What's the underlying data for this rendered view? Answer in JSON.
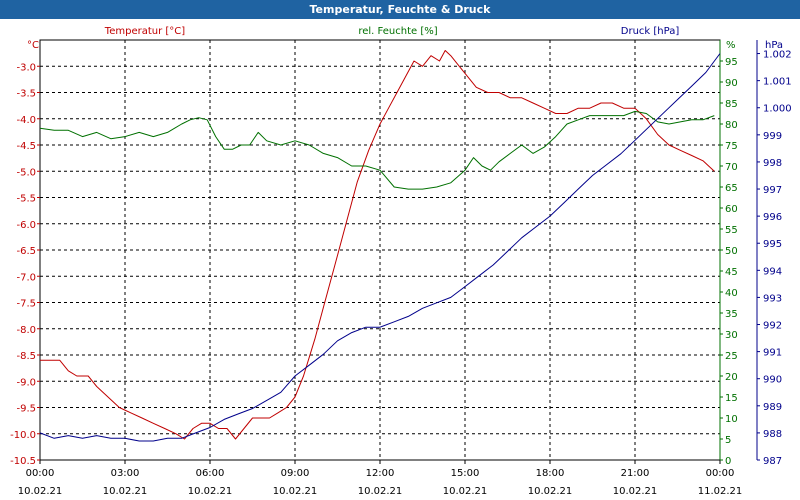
{
  "title": "Temperatur, Feuchte & Druck",
  "chart_data": {
    "type": "line",
    "title": "Temperatur, Feuchte & Druck",
    "colors": {
      "temperature": "#c00000",
      "humidity": "#007000",
      "pressure": "#00008b",
      "title_bar": "#1f63a2"
    },
    "x_ticks": [
      {
        "hours": 0,
        "time": "00:00",
        "date": "10.02.21"
      },
      {
        "hours": 3,
        "time": "03:00",
        "date": "10.02.21"
      },
      {
        "hours": 6,
        "time": "06:00",
        "date": "10.02.21"
      },
      {
        "hours": 9,
        "time": "09:00",
        "date": "10.02.21"
      },
      {
        "hours": 12,
        "time": "12:00",
        "date": "10.02.21"
      },
      {
        "hours": 15,
        "time": "15:00",
        "date": "10.02.21"
      },
      {
        "hours": 18,
        "time": "18:00",
        "date": "10.02.21"
      },
      {
        "hours": 21,
        "time": "21:00",
        "date": "10.02.21"
      },
      {
        "hours": 24,
        "time": "00:00",
        "date": "11.02.21"
      }
    ],
    "x_range": [
      0,
      24
    ],
    "axes": {
      "temperature": {
        "label": "Temperatur [°C]",
        "unit": "°C",
        "range": [
          -10.5,
          -2.5
        ],
        "ticks": [
          "-3.0",
          "-3.5",
          "-4.0",
          "-4.5",
          "-5.0",
          "-5.5",
          "-6.0",
          "-6.5",
          "-7.0",
          "-7.5",
          "-8.0",
          "-8.5",
          "-9.0",
          "-9.5",
          "-10.0",
          "-10.5"
        ]
      },
      "humidity": {
        "label": "rel. Feuchte [%]",
        "unit": "%",
        "range": [
          0,
          100
        ],
        "ticks": [
          "95",
          "90",
          "85",
          "80",
          "75",
          "70",
          "65",
          "60",
          "55",
          "50",
          "45",
          "40",
          "35",
          "30",
          "25",
          "20",
          "15",
          "10",
          "5",
          "0"
        ]
      },
      "pressure": {
        "label": "Druck [hPa]",
        "unit": "hPa",
        "range": [
          987,
          1002.5
        ],
        "ticks": [
          "1.002",
          "1.001",
          "1.000",
          "999",
          "998",
          "997",
          "996",
          "995",
          "994",
          "993",
          "992",
          "991",
          "990",
          "989",
          "988",
          "987"
        ]
      }
    },
    "series": [
      {
        "name": "Temperatur [°C]",
        "axis": "temperature",
        "x": [
          0,
          0.7,
          1.0,
          1.3,
          1.7,
          2.0,
          2.4,
          2.8,
          3.2,
          3.6,
          4.0,
          4.4,
          4.8,
          5.1,
          5.4,
          5.7,
          6.0,
          6.3,
          6.6,
          6.9,
          7.2,
          7.5,
          7.8,
          8.1,
          8.4,
          8.7,
          9.0,
          9.3,
          9.7,
          10.0,
          10.4,
          10.8,
          11.2,
          11.6,
          12.0,
          12.3,
          12.6,
          12.9,
          13.2,
          13.5,
          13.8,
          14.1,
          14.3,
          14.5,
          14.8,
          15.1,
          15.4,
          15.8,
          16.2,
          16.6,
          17.0,
          17.4,
          17.8,
          18.2,
          18.6,
          19.0,
          19.4,
          19.8,
          20.2,
          20.6,
          21.0,
          21.4,
          21.8,
          22.2,
          22.6,
          23.0,
          23.4,
          23.8
        ],
        "y": [
          -8.6,
          -8.6,
          -8.8,
          -8.9,
          -8.9,
          -9.1,
          -9.3,
          -9.5,
          -9.6,
          -9.7,
          -9.8,
          -9.9,
          -10.0,
          -10.1,
          -9.9,
          -9.8,
          -9.8,
          -9.9,
          -9.9,
          -10.1,
          -9.9,
          -9.7,
          -9.7,
          -9.7,
          -9.6,
          -9.5,
          -9.3,
          -8.9,
          -8.2,
          -7.6,
          -6.8,
          -6.0,
          -5.2,
          -4.6,
          -4.1,
          -3.8,
          -3.5,
          -3.2,
          -2.9,
          -3.0,
          -2.8,
          -2.9,
          -2.7,
          -2.8,
          -3.0,
          -3.2,
          -3.4,
          -3.5,
          -3.5,
          -3.6,
          -3.6,
          -3.7,
          -3.8,
          -3.9,
          -3.9,
          -3.8,
          -3.8,
          -3.7,
          -3.7,
          -3.8,
          -3.8,
          -4.0,
          -4.3,
          -4.5,
          -4.6,
          -4.7,
          -4.8,
          -5.0
        ]
      },
      {
        "name": "rel. Feuchte [%]",
        "axis": "humidity",
        "x": [
          0,
          0.5,
          1.0,
          1.5,
          2.0,
          2.5,
          3.0,
          3.5,
          4.0,
          4.5,
          5.0,
          5.3,
          5.6,
          5.9,
          6.2,
          6.5,
          6.8,
          7.1,
          7.4,
          7.7,
          8.0,
          8.5,
          9.0,
          9.5,
          10.0,
          10.5,
          11.0,
          11.5,
          12.0,
          12.5,
          13.0,
          13.5,
          14.0,
          14.5,
          15.0,
          15.3,
          15.6,
          15.9,
          16.2,
          16.6,
          17.0,
          17.4,
          17.8,
          18.2,
          18.6,
          19.0,
          19.4,
          19.8,
          20.2,
          20.6,
          21.0,
          21.4,
          21.8,
          22.2,
          22.6,
          23.0,
          23.4,
          23.8
        ],
        "y": [
          79,
          78.5,
          78.5,
          77,
          78,
          76.5,
          77,
          78,
          77,
          78,
          80,
          81,
          81.5,
          81,
          77,
          74,
          74,
          75,
          75,
          78,
          76,
          75,
          76,
          75,
          73,
          72,
          70,
          70,
          69,
          65,
          64.5,
          64.5,
          65,
          66,
          69,
          72,
          70,
          69,
          71,
          73,
          75,
          73,
          74.5,
          77,
          80,
          81,
          82,
          82,
          82,
          82,
          83,
          82.5,
          80.5,
          80,
          80.5,
          81,
          81,
          82
        ]
      },
      {
        "name": "Druck [hPa]",
        "axis": "pressure",
        "x": [
          0,
          0.5,
          1.0,
          1.5,
          2.0,
          2.5,
          3.0,
          3.5,
          4.0,
          4.5,
          5.0,
          5.5,
          6.0,
          6.5,
          7.0,
          7.5,
          8.0,
          8.5,
          9.0,
          9.5,
          10.0,
          10.5,
          11.0,
          11.5,
          12.0,
          12.5,
          13.0,
          13.5,
          14.0,
          14.5,
          15.0,
          15.5,
          16.0,
          16.5,
          17.0,
          17.5,
          18.0,
          18.5,
          19.0,
          19.5,
          20.0,
          20.5,
          21.0,
          21.5,
          22.0,
          22.5,
          23.0,
          23.5,
          24.0
        ],
        "y": [
          988.0,
          987.8,
          987.9,
          987.8,
          987.9,
          987.8,
          987.8,
          987.7,
          987.7,
          987.8,
          987.8,
          988.0,
          988.2,
          988.5,
          988.7,
          988.9,
          989.2,
          989.5,
          990.1,
          990.5,
          990.9,
          991.4,
          991.7,
          991.9,
          991.9,
          992.1,
          992.3,
          992.6,
          992.8,
          993.0,
          993.4,
          993.8,
          994.2,
          994.7,
          995.2,
          995.6,
          996.0,
          996.5,
          997.0,
          997.5,
          997.9,
          998.3,
          998.8,
          999.3,
          999.8,
          1000.3,
          1000.8,
          1001.3,
          1002.0
        ]
      }
    ]
  }
}
